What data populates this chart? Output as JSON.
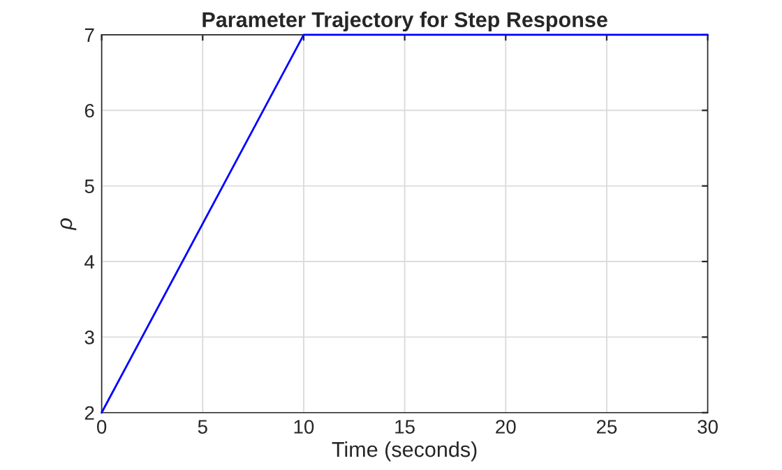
{
  "chart_data": {
    "type": "line",
    "title": "Parameter Trajectory for Step Response",
    "xlabel": "Time (seconds)",
    "ylabel": "ρ",
    "x": [
      0,
      10,
      30
    ],
    "series": [
      {
        "color": "#0000ff",
        "values": [
          2,
          7,
          7
        ]
      }
    ],
    "xlim": [
      0,
      30
    ],
    "xticks": [
      0,
      5,
      10,
      15,
      20,
      25,
      30
    ],
    "ylim": [
      2,
      7
    ],
    "yticks": [
      2,
      3,
      4,
      5,
      6,
      7
    ],
    "grid": true,
    "legend": false,
    "marker": "none",
    "line_style": "solid"
  }
}
